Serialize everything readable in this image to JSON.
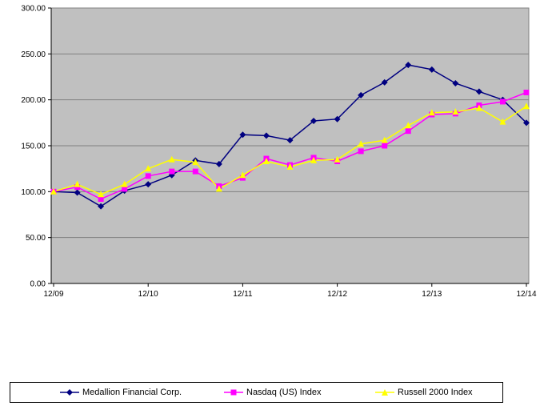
{
  "chart_data": {
    "type": "line",
    "x": [
      "12/09",
      "",
      "",
      "",
      "12/10",
      "",
      "",
      "",
      "12/11",
      "",
      "",
      "",
      "12/12",
      "",
      "",
      "",
      "12/13",
      "",
      "",
      "",
      "12/14"
    ],
    "xticks": [
      "12/09",
      "12/10",
      "12/11",
      "12/12",
      "12/13",
      "12/14"
    ],
    "yticks": [
      "0.00",
      "50.00",
      "100.00",
      "150.00",
      "200.00",
      "250.00",
      "300.00"
    ],
    "ylim": [
      0,
      300
    ],
    "grid": true,
    "legend_position": "bottom",
    "series": [
      {
        "name": "Medallion Financial Corp.",
        "color": "#000080",
        "marker": "diamond",
        "values": [
          100,
          99,
          84,
          101,
          108,
          118,
          134,
          130,
          162,
          161,
          156,
          177,
          179,
          205,
          219,
          238,
          233,
          218,
          209,
          200,
          175
        ]
      },
      {
        "name": "Nasdaq (US) Index",
        "color": "#FF00FF",
        "marker": "square",
        "values": [
          100,
          105,
          92,
          103,
          117,
          122,
          122,
          106,
          115,
          136,
          129,
          137,
          133,
          144,
          150,
          166,
          184,
          185,
          194,
          198,
          208
        ]
      },
      {
        "name": "Russell 2000 Index",
        "color": "#FFFF00",
        "marker": "triangle",
        "values": [
          100,
          108,
          97,
          108,
          125,
          135,
          132,
          103,
          118,
          133,
          127,
          134,
          135,
          152,
          156,
          172,
          186,
          187,
          191,
          176,
          193
        ]
      }
    ]
  }
}
